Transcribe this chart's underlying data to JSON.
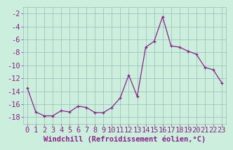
{
  "x": [
    0,
    1,
    2,
    3,
    4,
    5,
    6,
    7,
    8,
    9,
    10,
    11,
    12,
    13,
    14,
    15,
    16,
    17,
    18,
    19,
    20,
    21,
    22,
    23
  ],
  "y": [
    -13.5,
    -17.2,
    -17.8,
    -17.8,
    -17.0,
    -17.2,
    -16.3,
    -16.5,
    -17.3,
    -17.3,
    -16.5,
    -15.0,
    -11.5,
    -14.8,
    -7.2,
    -6.3,
    -2.5,
    -7.0,
    -7.2,
    -7.8,
    -8.3,
    -10.3,
    -10.7,
    -12.7
  ],
  "line_color": "#882288",
  "marker": "+",
  "bg_color": "#cceedd",
  "grid_color": "#99bbbb",
  "xlabel": "Windchill (Refroidissement éolien,°C)",
  "ylabel": "",
  "xlim": [
    -0.5,
    23.5
  ],
  "ylim": [
    -19,
    -1
  ],
  "yticks": [
    -18,
    -16,
    -14,
    -12,
    -10,
    -8,
    -6,
    -4,
    -2
  ],
  "xticks": [
    0,
    1,
    2,
    3,
    4,
    5,
    6,
    7,
    8,
    9,
    10,
    11,
    12,
    13,
    14,
    15,
    16,
    17,
    18,
    19,
    20,
    21,
    22,
    23
  ],
  "tick_color": "#882288",
  "xlabel_color": "#882288",
  "font_size": 7.5
}
